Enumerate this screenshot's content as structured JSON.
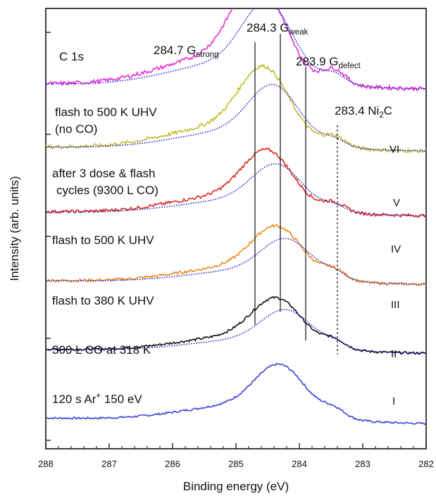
{
  "chart_data": {
    "type": "line",
    "xlabel": "Binding energy (eV)",
    "ylabel": "Intensity (arb. units)",
    "x_reversed": true,
    "xlim": [
      288,
      282
    ],
    "xticks": [
      "288",
      "287",
      "286",
      "285",
      "284",
      "283",
      "282"
    ],
    "y_ticks_labeled": false,
    "region_label": "C 1s",
    "peak_lines": [
      {
        "x": 284.7,
        "label": "284.7 G",
        "sub": "strong",
        "style": "solid"
      },
      {
        "x": 284.3,
        "label": "284.3 G",
        "sub": "weak",
        "style": "solid"
      },
      {
        "x": 283.9,
        "label": "283.9 G",
        "sub": "defect",
        "style": "solid"
      },
      {
        "x": 283.4,
        "label": "283.4 Ni",
        "label_sub": "2",
        "label_tail": "C",
        "style": "dashed"
      }
    ],
    "series": [
      {
        "roman": "I",
        "color": "#3f3fd8",
        "style": "solid",
        "offset": 0.0,
        "height": 0.55,
        "bg_left": 0.05,
        "bg_right": -0.02,
        "shoulder": 0.3,
        "peak": 284.3,
        "annotation": [
          "120 s Ar",
          "+",
          " 150 eV"
        ]
      },
      {
        "roman": "II",
        "color": "#111111",
        "style": "solid",
        "offset": 0.85,
        "height": 0.52,
        "bg_left": 0.05,
        "bg_right": 0.0,
        "shoulder": 0.32,
        "peak": 284.35,
        "annotation": [
          "300 L CO at 318 K"
        ]
      },
      {
        "roman": "III",
        "color": "#ee8a1e",
        "style": "solid",
        "offset": 1.7,
        "height": 0.55,
        "bg_left": 0.05,
        "bg_right": 0.0,
        "shoulder": 0.34,
        "peak": 284.35,
        "annotation": [
          "flash to 380 K UHV"
        ]
      },
      {
        "roman": "IV",
        "color": "#dd2a1c",
        "style": "solid",
        "offset": 2.55,
        "height": 0.62,
        "bg_left": 0.05,
        "bg_right": 0.0,
        "shoulder": 0.28,
        "peak": 284.5,
        "annotation": [
          "flash to 500 K UHV"
        ]
      },
      {
        "roman": "V",
        "color": "#c2bb2c",
        "style": "solid",
        "offset": 3.35,
        "height": 0.8,
        "bg_left": 0.05,
        "bg_right": 0.0,
        "shoulder": 0.25,
        "peak": 284.55,
        "annotation": [
          "after 3 dose & flash",
          "cycles  (9300 L CO)"
        ]
      },
      {
        "roman": "VI",
        "color": "#e72ed3",
        "style": "solid",
        "offset": 4.1,
        "height": 1.05,
        "bg_left": 0.08,
        "bg_right": 0.02,
        "shoulder": 0.28,
        "peak": 284.65,
        "annotation": [
          "flash to 500 K UHV",
          "(no CO)"
        ]
      }
    ],
    "reference_dotted": {
      "color": "#1a1ad8",
      "style": "dotted"
    }
  }
}
